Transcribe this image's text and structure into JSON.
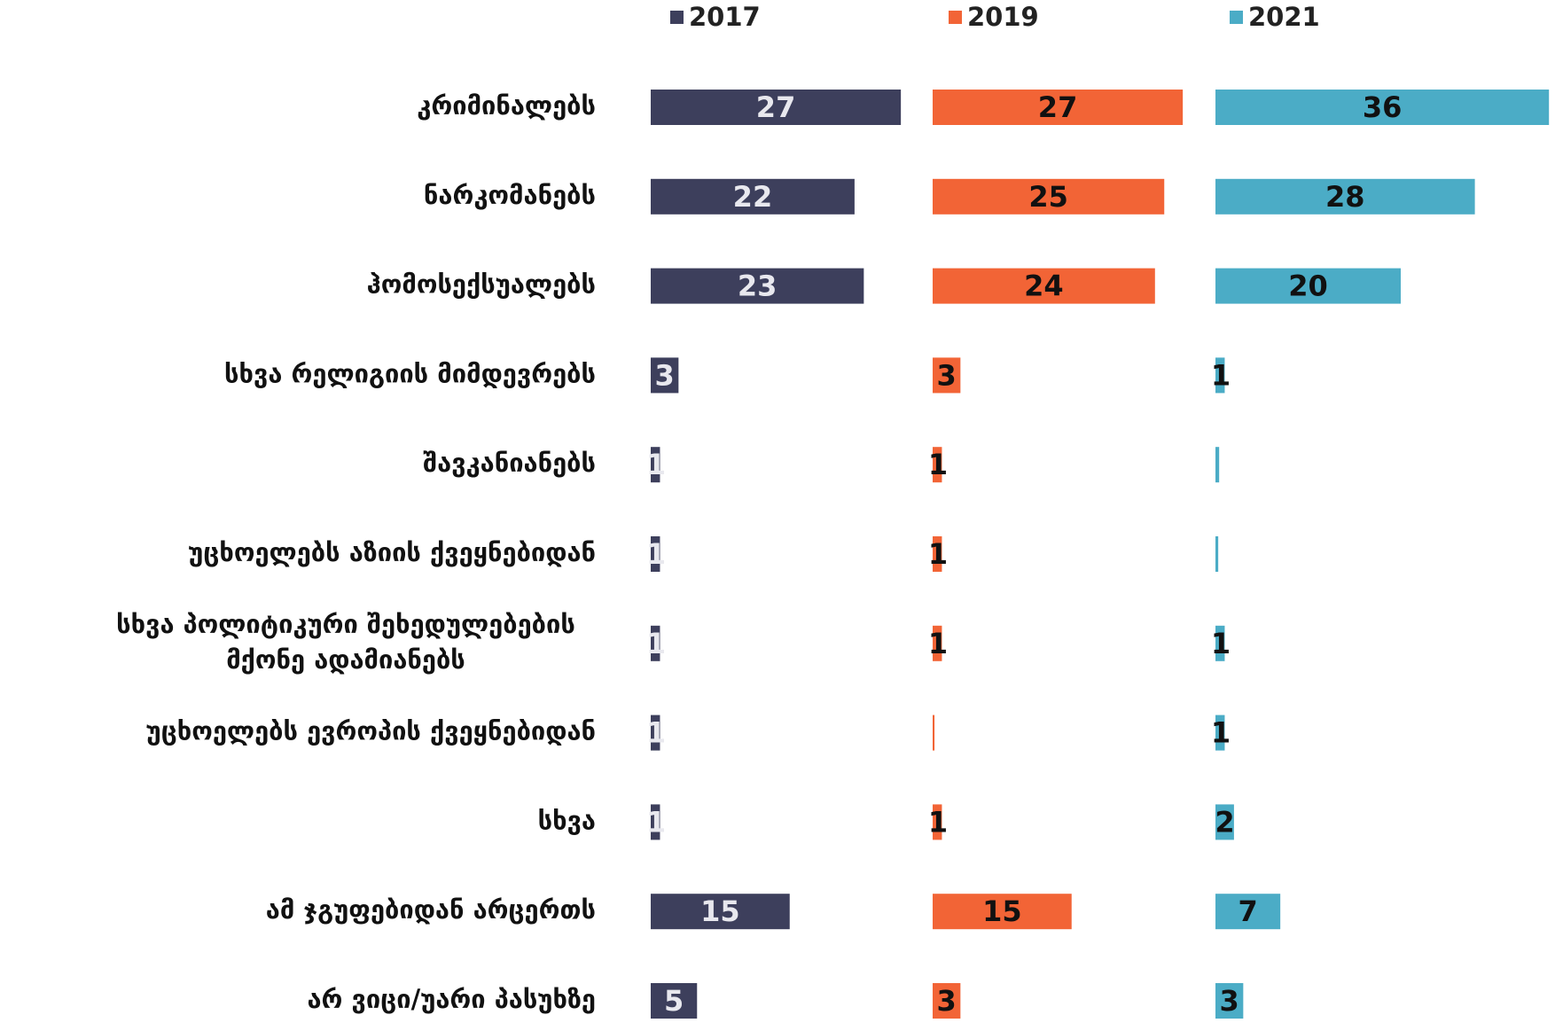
{
  "chart_data": {
    "type": "bar",
    "orientation": "horizontal",
    "layout": "small-multiples",
    "categories": [
      "კრიმინალებს",
      "ნარკომანებს",
      "ჰომოსექსუალებს",
      "სხვა რელიგიის მიმდევრებს",
      "შავკანიანებს",
      "უცხოელებს აზიის ქვეყნებიდან",
      "სხვა პოლიტიკური შეხედულებების\nმქონე ადამიანებს",
      "უცხოელებს ევროპის ქვეყნებიდან",
      "სხვა",
      "ამ ჯგუფებიდან არცერთს",
      "არ ვიცი/უარი პასუხზე"
    ],
    "series": [
      {
        "name": "2017",
        "color": "#3d3f5c",
        "label_color": "#e8e8ee",
        "values": [
          27,
          22,
          23,
          3,
          1,
          1,
          1,
          1,
          1,
          15,
          5
        ]
      },
      {
        "name": "2019",
        "color": "#f26436",
        "label_color": "#111111",
        "values": [
          27,
          25,
          24,
          3,
          1,
          1,
          1,
          0.2,
          1,
          15,
          3
        ],
        "value_labels": [
          "27",
          "25",
          "24",
          "3",
          "1",
          "1",
          "1",
          null,
          "1",
          "15",
          "3"
        ]
      },
      {
        "name": "2021",
        "color": "#4bacc6",
        "label_color": "#111111",
        "values": [
          36,
          28,
          20,
          1,
          0.4,
          0.3,
          1,
          1,
          2,
          7,
          3
        ],
        "value_labels": [
          "36",
          "28",
          "20",
          "1",
          null,
          null,
          "1",
          "1",
          "2",
          "7",
          "3"
        ]
      }
    ],
    "legend": "top"
  }
}
